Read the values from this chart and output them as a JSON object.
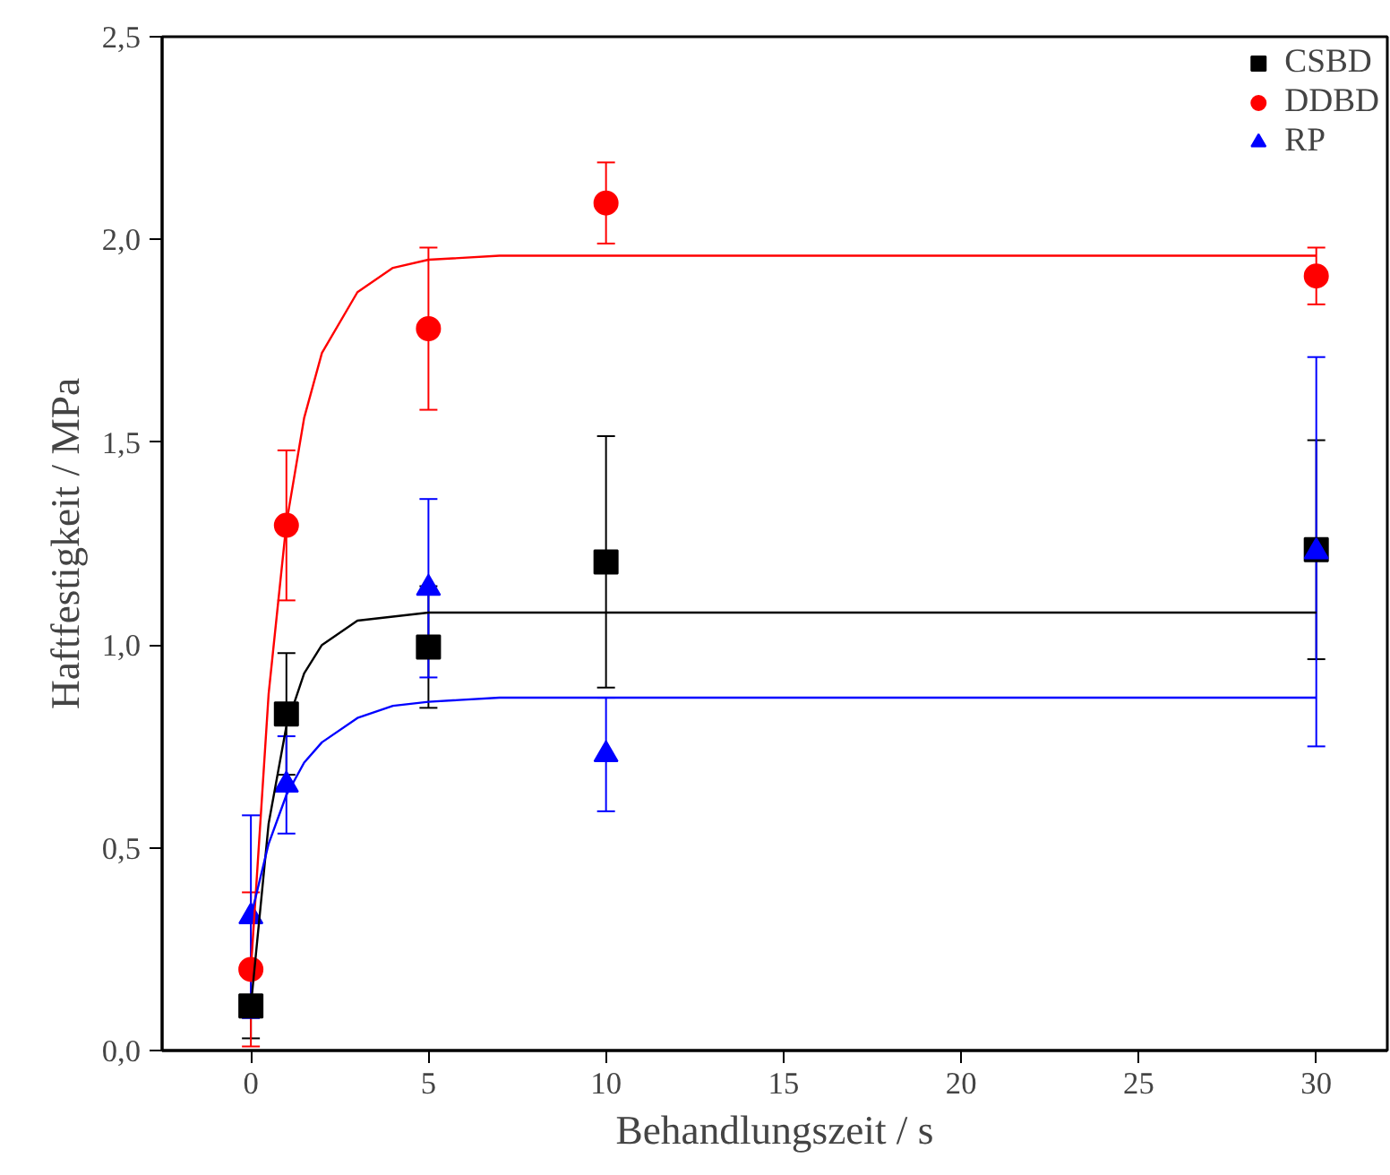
{
  "chart_data": {
    "type": "scatter",
    "xlabel": "Behandlungszeit / s",
    "ylabel": "Haftfestigkeit / MPa",
    "x": [
      0,
      1,
      5,
      10,
      30
    ],
    "xlim": [
      -2.5,
      32
    ],
    "xticks": [
      0,
      5,
      10,
      15,
      20,
      25,
      30
    ],
    "ylim": [
      0,
      2.5
    ],
    "yticks": [
      {
        "value": 0,
        "label": "0,0"
      },
      {
        "value": 0.5,
        "label": "0,5"
      },
      {
        "value": 1,
        "label": "1,0"
      },
      {
        "value": 1.5,
        "label": "1,5"
      },
      {
        "value": 2,
        "label": "2,0"
      },
      {
        "value": 2.5,
        "label": "2,5"
      }
    ],
    "grid": false,
    "legend": "top right",
    "series": [
      {
        "name": "CSBD",
        "marker": "square",
        "color": "#000000",
        "values": [
          0.11,
          0.83,
          0.995,
          1.205,
          1.235
        ],
        "errors": [
          0.08,
          0.15,
          0.15,
          0.31,
          0.27
        ]
      },
      {
        "name": "DDBD",
        "marker": "circle",
        "color": "#ff0000",
        "values": [
          0.2,
          1.295,
          1.78,
          2.09,
          1.91
        ],
        "errors": [
          0.19,
          0.185,
          0.2,
          0.1,
          0.07
        ]
      },
      {
        "name": "RP",
        "marker": "triangle",
        "color": "#0000ff",
        "values": [
          0.33,
          0.655,
          1.14,
          0.73,
          1.23
        ],
        "errors": [
          0.25,
          0.12,
          0.22,
          0.14,
          0.48
        ]
      },
      {
        "type": "line",
        "color": "#000000",
        "x": [
          0,
          0.5,
          1,
          1.5,
          2,
          3,
          4,
          5,
          7,
          10,
          20,
          30
        ],
        "values": [
          0.11,
          0.56,
          0.8,
          0.93,
          1.0,
          1.06,
          1.07,
          1.08,
          1.08,
          1.08,
          1.08,
          1.08
        ]
      },
      {
        "type": "line",
        "color": "#ff0000",
        "x": [
          0,
          0.5,
          1,
          1.5,
          2,
          3,
          4,
          5,
          7,
          10,
          20,
          30
        ],
        "values": [
          0.2,
          0.88,
          1.3,
          1.56,
          1.72,
          1.87,
          1.93,
          1.95,
          1.96,
          1.96,
          1.96,
          1.96
        ]
      },
      {
        "type": "line",
        "color": "#0000ff",
        "x": [
          0,
          0.5,
          1,
          1.5,
          2,
          3,
          4,
          5,
          7,
          10,
          20,
          30
        ],
        "values": [
          0.33,
          0.51,
          0.63,
          0.71,
          0.76,
          0.82,
          0.85,
          0.86,
          0.87,
          0.87,
          0.87,
          0.87
        ]
      }
    ]
  }
}
